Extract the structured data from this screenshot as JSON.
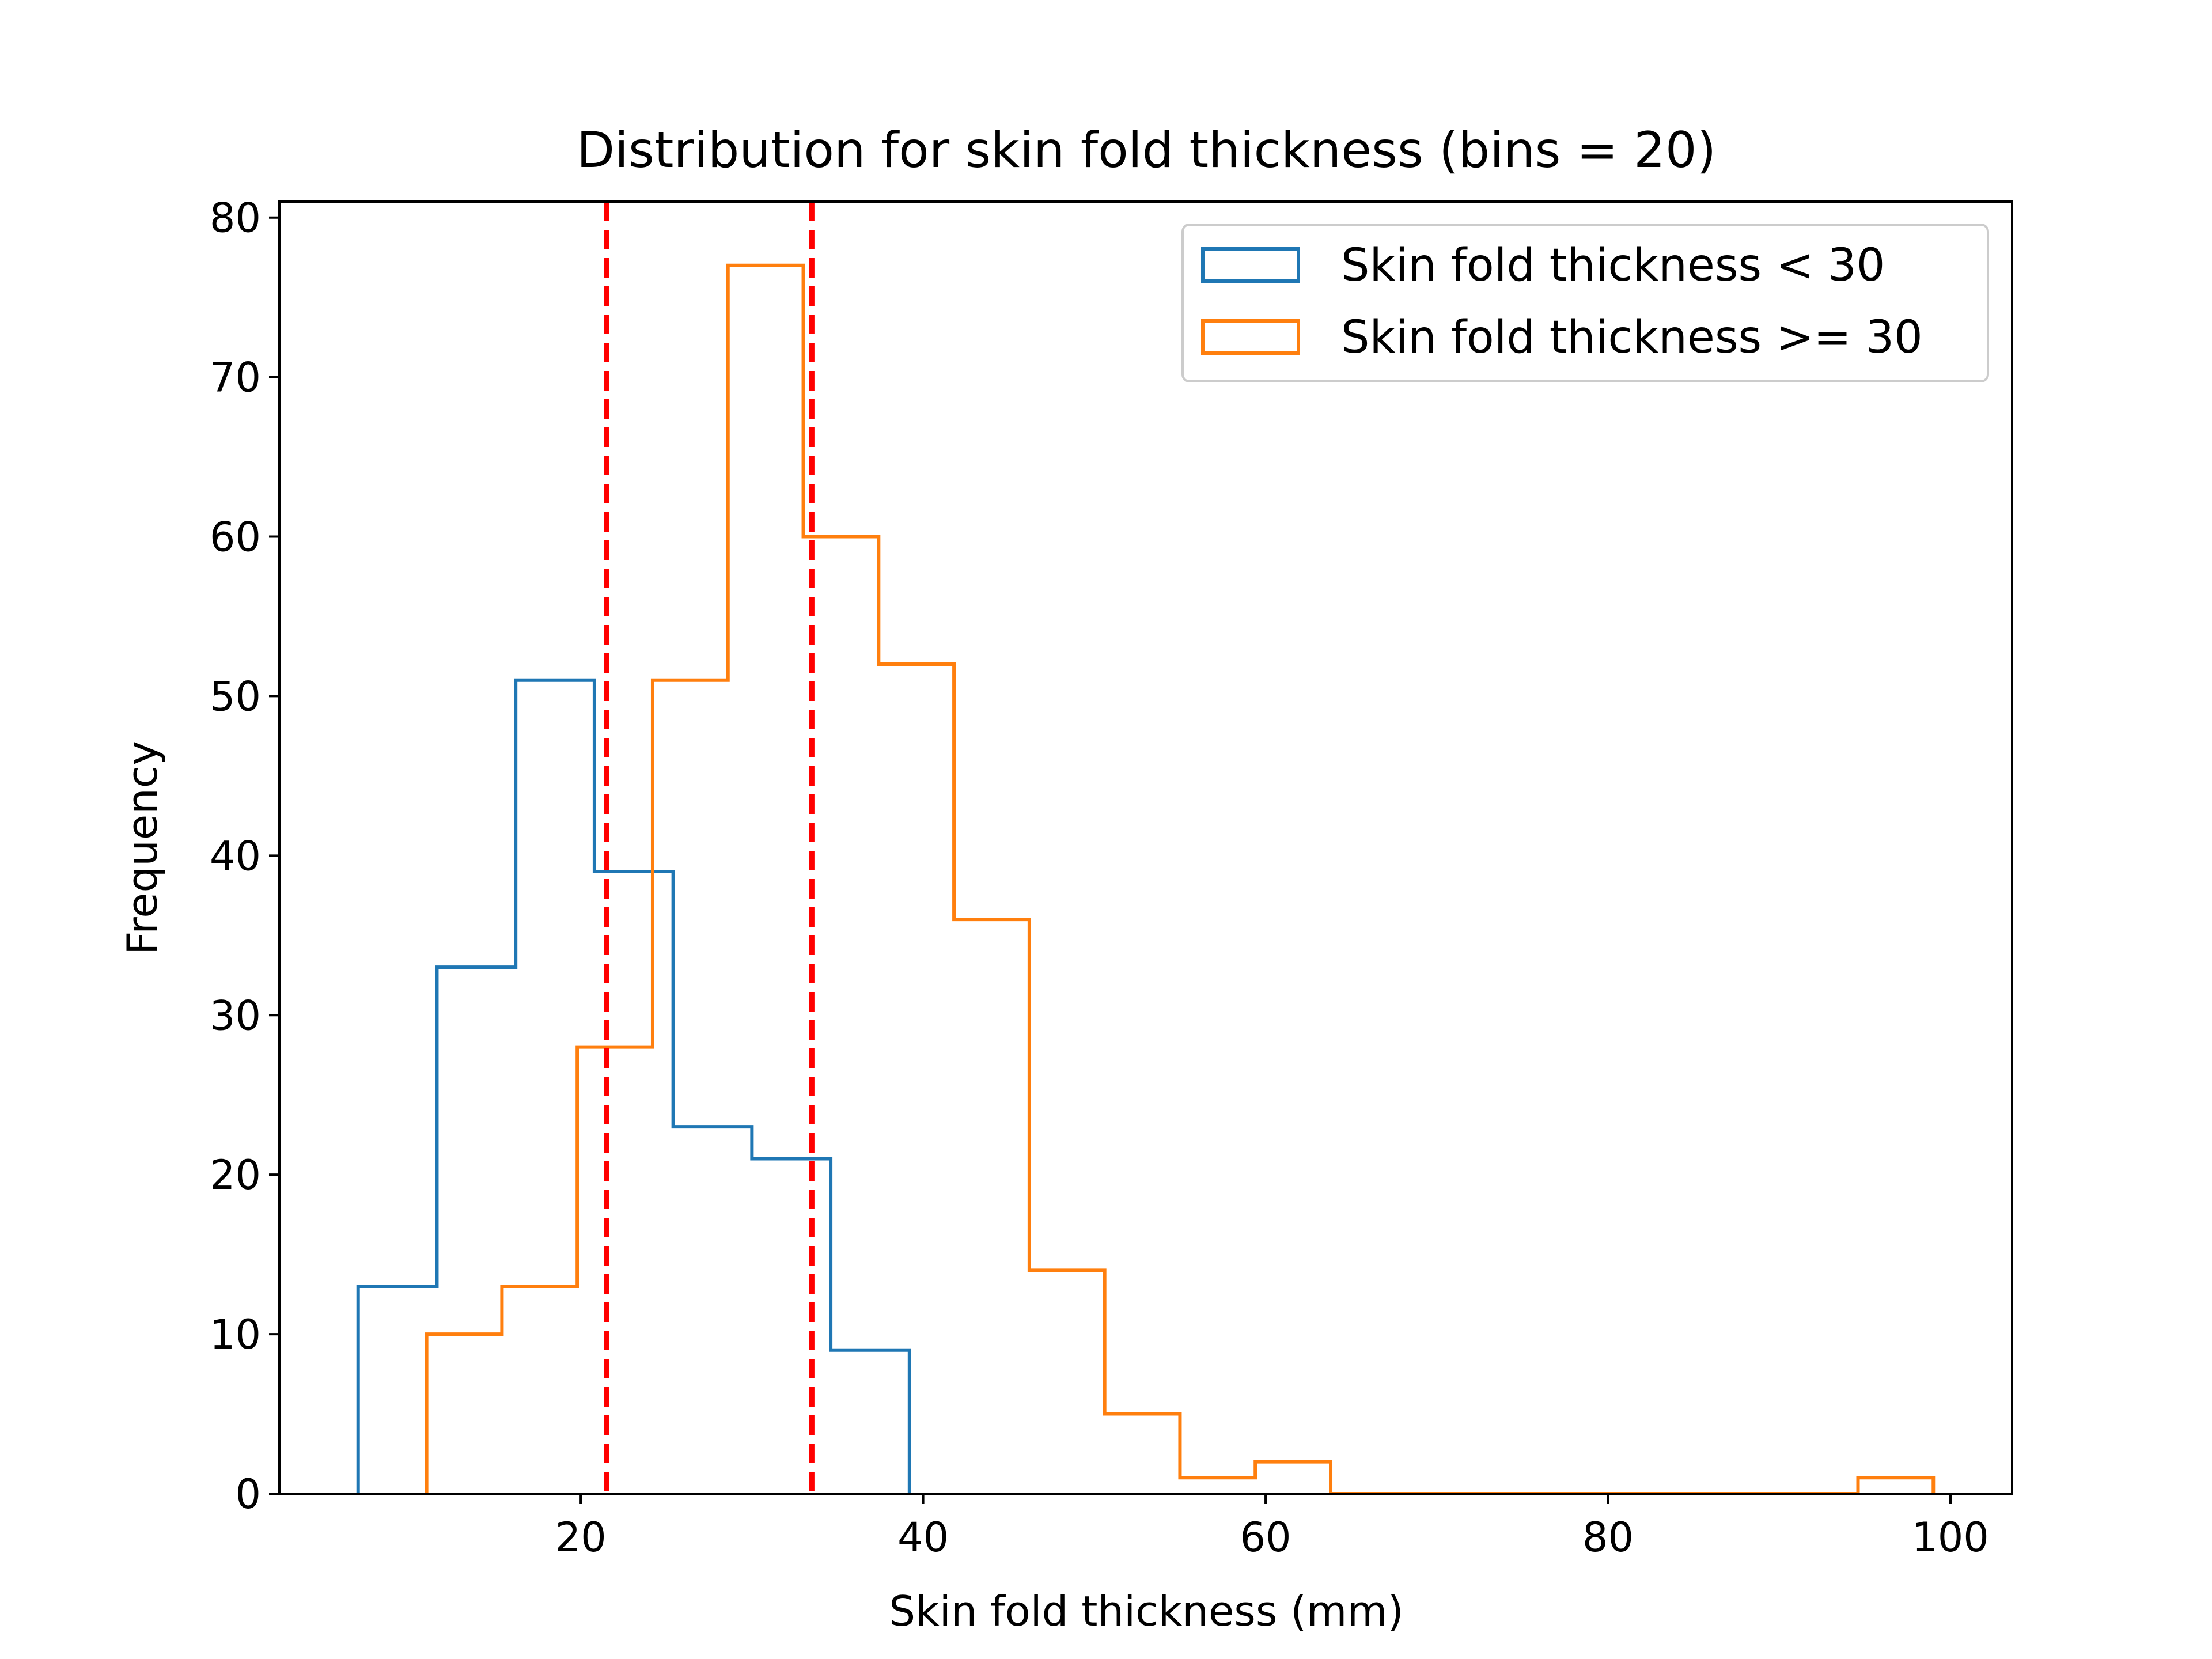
{
  "chart_data": {
    "type": "histogram",
    "title": "Distribution for skin fold thickness (bins = 20)",
    "xlabel": "Skin fold thickness (mm)",
    "ylabel": "Frequency",
    "xlim": [
      2.4,
      103.6
    ],
    "ylim": [
      0,
      81
    ],
    "xticks": [
      20,
      40,
      60,
      80,
      100
    ],
    "yticks": [
      0,
      10,
      20,
      30,
      40,
      50,
      60,
      70,
      80
    ],
    "grid": false,
    "legend_position": "top-right",
    "series": [
      {
        "name": "Skin fold thickness < 30",
        "color": "#1f77b4",
        "bin_edges": [
          7.0,
          11.6,
          16.2,
          20.8,
          25.4,
          30.0,
          34.6,
          39.2
        ],
        "counts": [
          13,
          33,
          51,
          39,
          23,
          21,
          9
        ]
      },
      {
        "name": "Skin fold thickness >= 30",
        "color": "#ff7f0e",
        "bin_edges": [
          11.0,
          15.4,
          19.8,
          24.2,
          28.6,
          33.0,
          37.4,
          41.8,
          46.2,
          50.6,
          55.0,
          59.4,
          63.8,
          68.2,
          72.6,
          77.0,
          81.4,
          85.8,
          90.2,
          94.6,
          99.0
        ],
        "counts": [
          10,
          13,
          28,
          51,
          77,
          60,
          52,
          36,
          14,
          5,
          1,
          2,
          0,
          0,
          0,
          0,
          0,
          0,
          0,
          1
        ]
      }
    ],
    "reference_lines": [
      {
        "x": 21.5,
        "color": "#ff0000",
        "style": "dashed"
      },
      {
        "x": 33.5,
        "color": "#ff0000",
        "style": "dashed"
      }
    ]
  }
}
